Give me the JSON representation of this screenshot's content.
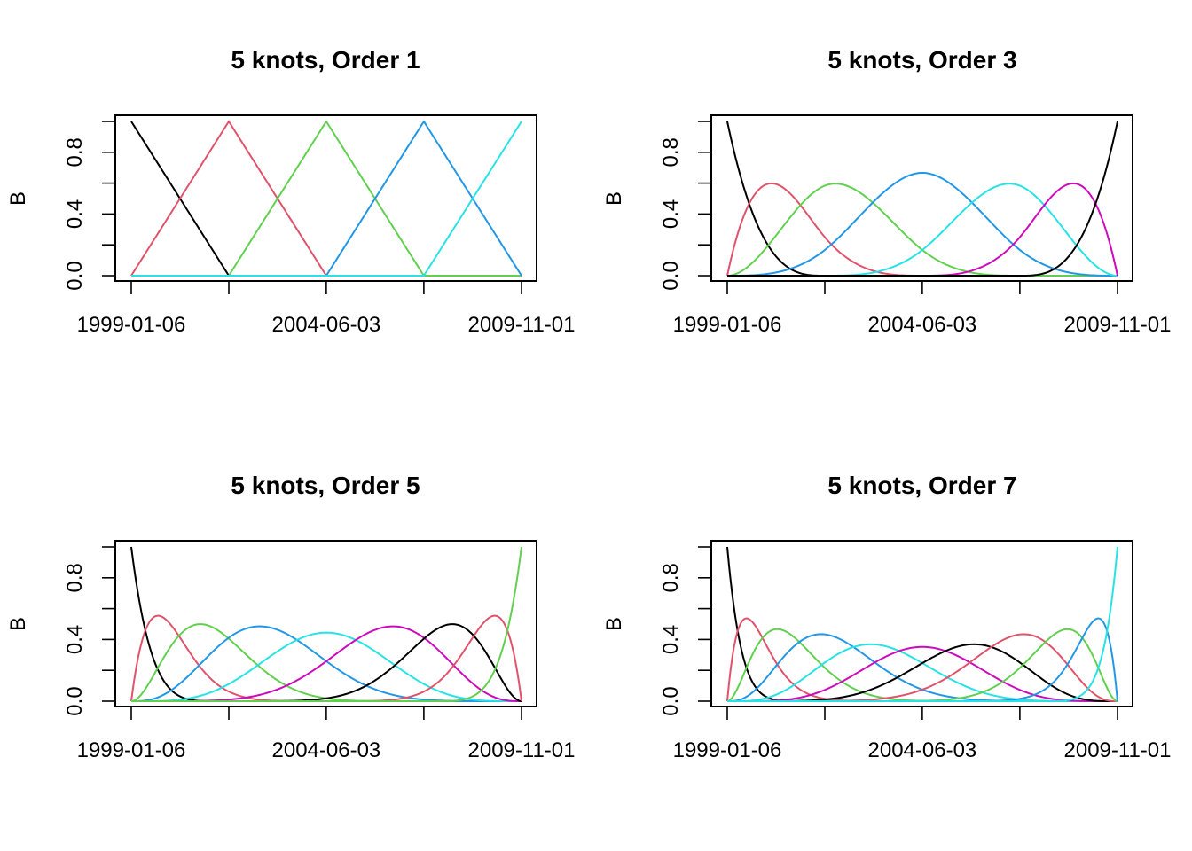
{
  "chart_data": [
    {
      "type": "line",
      "title": "5 knots, Order 1",
      "ylabel": "B",
      "xlabel": "",
      "x_range": [
        "1999-01-06",
        "2009-11-01"
      ],
      "xtick_labels": [
        "1999-01-06",
        "2004-06-03",
        "2009-11-01"
      ],
      "ylim": [
        0,
        1
      ],
      "ytick_labels": [
        "0.0",
        "0.4",
        "0.8"
      ],
      "x_knots": [
        "1999-01-06",
        "2001-09-20",
        "2004-06-03",
        "2007-02-16",
        "2009-11-01"
      ],
      "degree": 1,
      "n_basis": 5,
      "colors": [
        "#000000",
        "#DF536B",
        "#61D04F",
        "#2297E6",
        "#28E2E5"
      ]
    },
    {
      "type": "line",
      "title": "5 knots, Order 3",
      "ylabel": "B",
      "xlabel": "",
      "x_range": [
        "1999-01-06",
        "2009-11-01"
      ],
      "xtick_labels": [
        "1999-01-06",
        "2004-06-03",
        "2009-11-01"
      ],
      "ylim": [
        0,
        1
      ],
      "ytick_labels": [
        "0.0",
        "0.4",
        "0.8"
      ],
      "x_knots": [
        "1999-01-06",
        "2001-09-20",
        "2004-06-03",
        "2007-02-16",
        "2009-11-01"
      ],
      "degree": 3,
      "n_basis": 7,
      "colors": [
        "#000000",
        "#DF536B",
        "#61D04F",
        "#2297E6",
        "#28E2E5",
        "#CD0BBC",
        "#000000"
      ]
    },
    {
      "type": "line",
      "title": "5 knots, Order 5",
      "ylabel": "B",
      "xlabel": "",
      "x_range": [
        "1999-01-06",
        "2009-11-01"
      ],
      "xtick_labels": [
        "1999-01-06",
        "2004-06-03",
        "2009-11-01"
      ],
      "ylim": [
        0,
        1
      ],
      "ytick_labels": [
        "0.0",
        "0.4",
        "0.8"
      ],
      "x_knots": [
        "1999-01-06",
        "2001-09-20",
        "2004-06-03",
        "2007-02-16",
        "2009-11-01"
      ],
      "degree": 5,
      "n_basis": 9,
      "colors": [
        "#000000",
        "#DF536B",
        "#61D04F",
        "#2297E6",
        "#28E2E5",
        "#CD0BBC",
        "#000000",
        "#DF536B",
        "#61D04F"
      ]
    },
    {
      "type": "line",
      "title": "5 knots, Order 7",
      "ylabel": "B",
      "xlabel": "",
      "x_range": [
        "1999-01-06",
        "2009-11-01"
      ],
      "xtick_labels": [
        "1999-01-06",
        "2004-06-03",
        "2009-11-01"
      ],
      "ylim": [
        0,
        1
      ],
      "ytick_labels": [
        "0.0",
        "0.4",
        "0.8"
      ],
      "x_knots": [
        "1999-01-06",
        "2001-09-20",
        "2004-06-03",
        "2007-02-16",
        "2009-11-01"
      ],
      "degree": 7,
      "n_basis": 11,
      "colors": [
        "#000000",
        "#DF536B",
        "#61D04F",
        "#2297E6",
        "#28E2E5",
        "#CD0BBC",
        "#000000",
        "#DF536B",
        "#61D04F",
        "#2297E6",
        "#28E2E5"
      ]
    }
  ]
}
